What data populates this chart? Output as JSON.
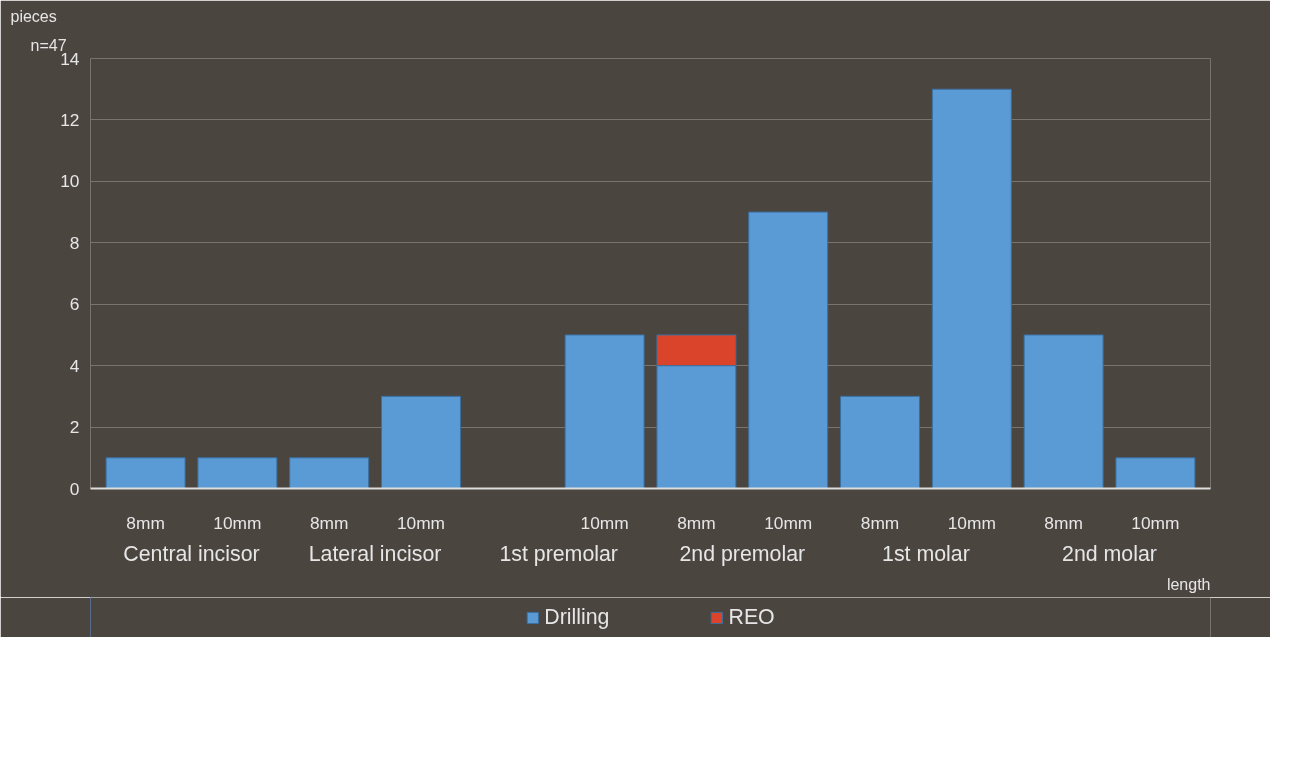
{
  "chart_data": {
    "type": "bar",
    "stacked": true,
    "categories": [
      "8mm",
      "10mm",
      "8mm",
      "10mm",
      null,
      "10mm",
      "8mm",
      "10mm",
      "8mm",
      "10mm",
      "8mm",
      "10mm"
    ],
    "series": [
      {
        "name": "Drilling",
        "color": "#5b9bd5",
        "values": [
          1,
          1,
          1,
          3,
          null,
          5,
          4,
          9,
          3,
          13,
          5,
          1
        ]
      },
      {
        "name": "REO",
        "color": "#d9442b",
        "values": [
          null,
          null,
          null,
          null,
          null,
          null,
          1,
          null,
          null,
          null,
          null,
          null
        ]
      }
    ],
    "ylabel": "pieces",
    "xlabel": "length",
    "annotations": [
      "n=47",
      "Central incisor",
      "Lateral incisor",
      "1st premolar",
      "2nd premolar",
      "1st molar",
      "2nd molar"
    ],
    "ylim": [
      0,
      14
    ],
    "yticks": [
      0,
      2,
      4,
      6,
      8,
      10,
      12,
      14
    ],
    "grid": "y",
    "legend": "bottom"
  }
}
